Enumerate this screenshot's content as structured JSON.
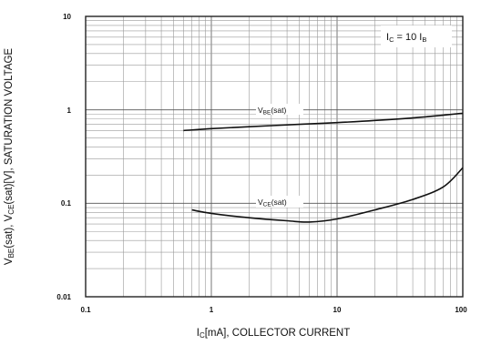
{
  "chart_data": {
    "type": "line",
    "x_scale": "log",
    "y_scale": "log",
    "xlim": [
      0.1,
      100
    ],
    "ylim": [
      0.01,
      10
    ],
    "grid": true,
    "xlabel_parts": [
      "I",
      "C",
      "[mA], COLLECTOR CURRENT"
    ],
    "ylabel_parts": [
      "V",
      "BE",
      "(sat), V",
      "CE",
      "(sat)[V], SATURATION VOLTAGE"
    ],
    "x_ticks": [
      "0.1",
      "1",
      "10",
      "100"
    ],
    "y_ticks": [
      "10",
      "1",
      "0.1",
      "0.01"
    ],
    "condition_parts": [
      "I",
      "C",
      " = 10 I",
      "B"
    ],
    "series": [
      {
        "name_parts": [
          "V",
          "BE",
          "(sat)"
        ],
        "x": [
          0.6,
          1,
          2,
          5,
          10,
          20,
          50,
          100
        ],
        "y": [
          0.6,
          0.63,
          0.66,
          0.7,
          0.73,
          0.77,
          0.84,
          0.92
        ]
      },
      {
        "name_parts": [
          "V",
          "CE",
          "(sat)"
        ],
        "x": [
          0.7,
          1,
          2,
          4,
          6,
          10,
          20,
          40,
          70,
          100
        ],
        "y": [
          0.085,
          0.078,
          0.07,
          0.065,
          0.063,
          0.068,
          0.085,
          0.11,
          0.15,
          0.24
        ]
      }
    ]
  }
}
